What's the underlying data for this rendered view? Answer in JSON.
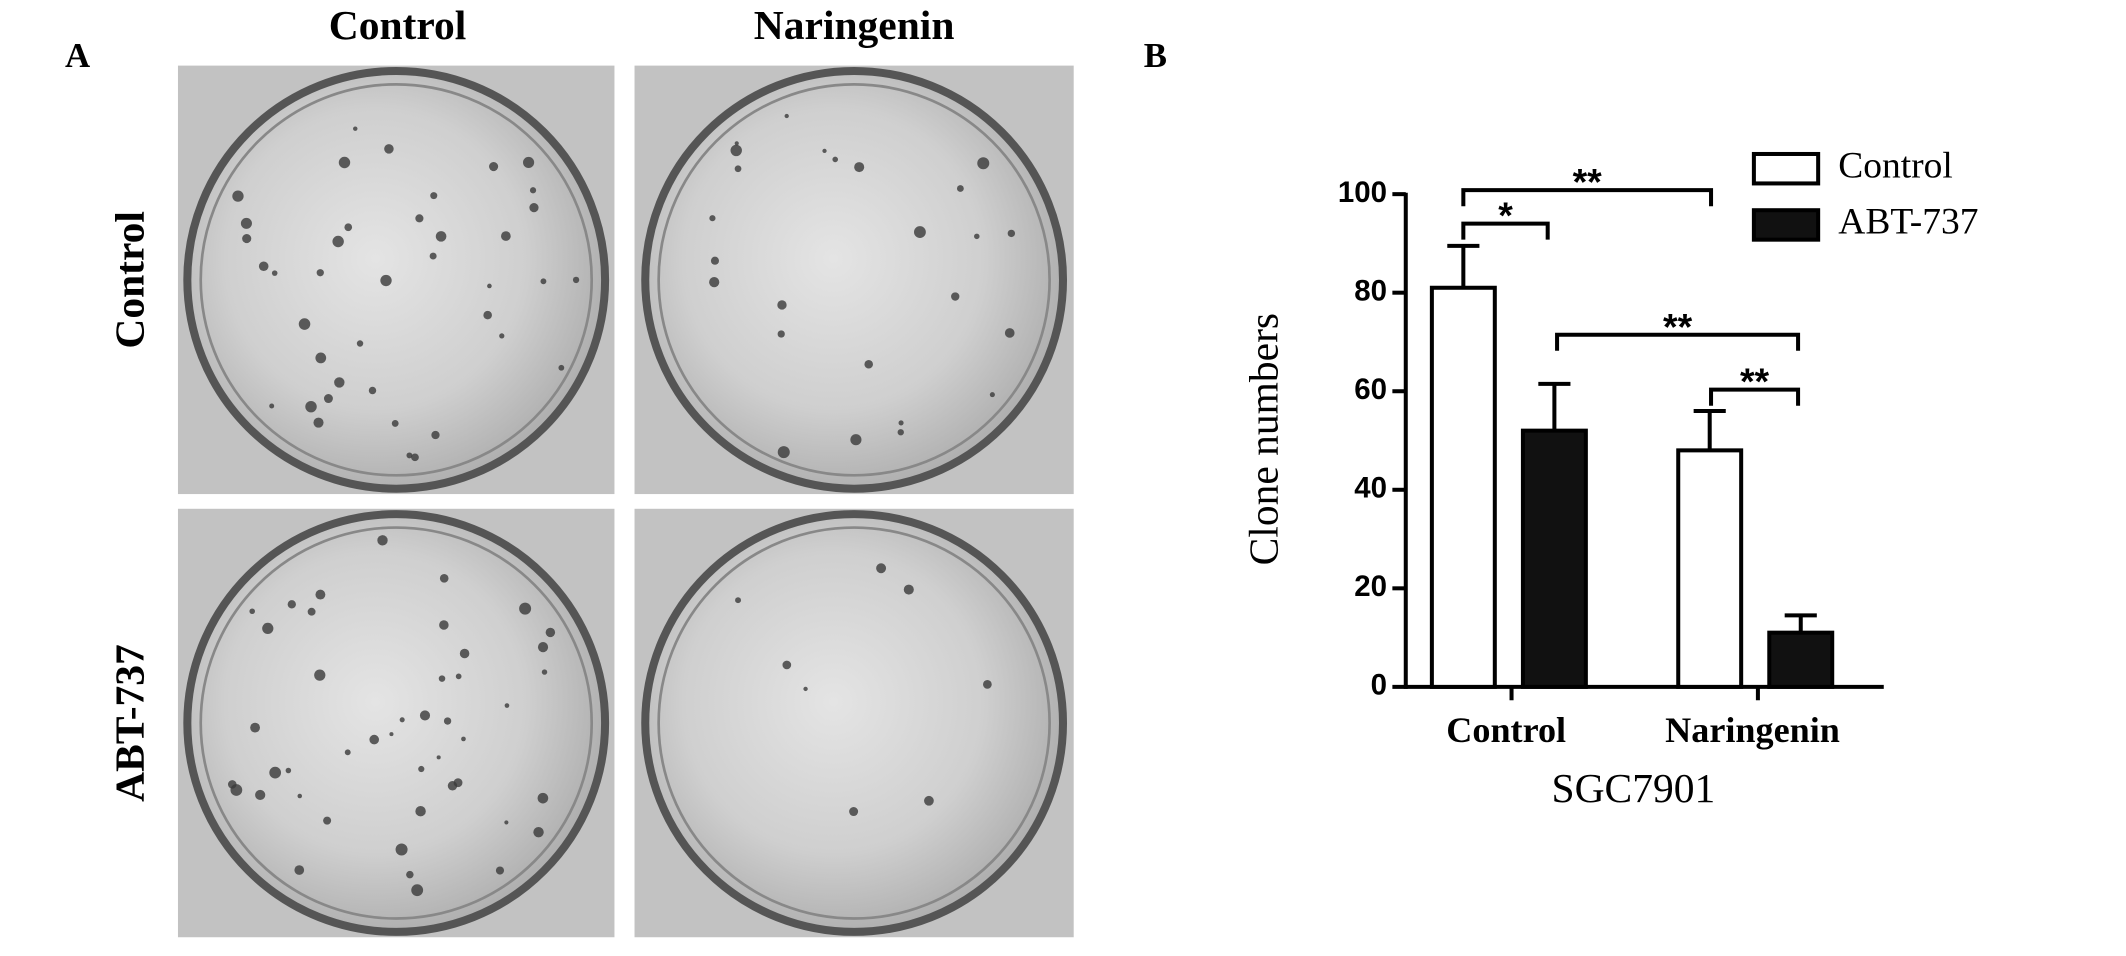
{
  "panel_a": {
    "label": "A",
    "column_labels": [
      "Control",
      "Naringenin"
    ],
    "row_labels": [
      "Control",
      "ABT-737"
    ]
  },
  "chart_data": {
    "type": "bar",
    "panel_label": "B",
    "x_label": "SGC7901",
    "y_label": "Clone numbers",
    "categories": [
      "Control",
      "Naringenin"
    ],
    "series": [
      {
        "name": "Control",
        "color": "#ffffff",
        "values": [
          81,
          48
        ],
        "errors": [
          8.5,
          8
        ]
      },
      {
        "name": "ABT-737",
        "color": "#111111",
        "values": [
          52,
          11
        ],
        "errors": [
          9.5,
          3.5
        ]
      }
    ],
    "ylim": [
      0,
      100
    ],
    "yticks": [
      0,
      20,
      40,
      60,
      80,
      100
    ],
    "annotations": [
      "**",
      "*",
      "**",
      "**"
    ],
    "legend": "upper right"
  }
}
